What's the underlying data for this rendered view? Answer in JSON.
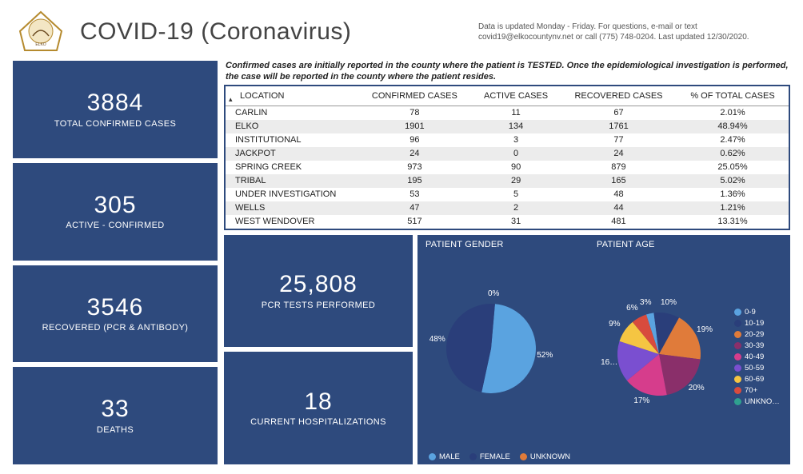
{
  "header": {
    "title": "COVID-19 (Coronavirus)",
    "update_note": "Data is updated Monday - Friday.  For questions, e-mail or text covid19@elkocountynv.net or call (775) 748-0204.  Last updated 12/30/2020."
  },
  "disclaimer": "Confirmed cases are initially reported in the county where the patient is TESTED.  Once the epidemiological investigation is performed, the case will be reported in the county where the patient resides.",
  "left_stats": [
    {
      "value": "3884",
      "label": "TOTAL CONFIRMED CASES"
    },
    {
      "value": "305",
      "label": "ACTIVE - CONFIRMED"
    },
    {
      "value": "3546",
      "label": "RECOVERED (PCR & ANTIBODY)"
    },
    {
      "value": "33",
      "label": "DEATHS"
    }
  ],
  "mid_stats": [
    {
      "value": "25,808",
      "label": "PCR TESTS PERFORMED"
    },
    {
      "value": "18",
      "label": "CURRENT HOSPITALIZATIONS"
    }
  ],
  "table": {
    "columns": [
      "LOCATION",
      "CONFIRMED CASES",
      "ACTIVE CASES",
      "RECOVERED CASES",
      "% OF TOTAL CASES"
    ],
    "rows": [
      [
        "CARLIN",
        "78",
        "11",
        "67",
        "2.01%"
      ],
      [
        "ELKO",
        "1901",
        "134",
        "1761",
        "48.94%"
      ],
      [
        "INSTITUTIONAL",
        "96",
        "3",
        "77",
        "2.47%"
      ],
      [
        "JACKPOT",
        "24",
        "0",
        "24",
        "0.62%"
      ],
      [
        "SPRING CREEK",
        "973",
        "90",
        "879",
        "25.05%"
      ],
      [
        "TRIBAL",
        "195",
        "29",
        "165",
        "5.02%"
      ],
      [
        "UNDER INVESTIGATION",
        "53",
        "5",
        "48",
        "1.36%"
      ],
      [
        "WELLS",
        "47",
        "2",
        "44",
        "1.21%"
      ],
      [
        "WEST WENDOVER",
        "517",
        "31",
        "481",
        "13.31%"
      ]
    ]
  },
  "gender_chart": {
    "title": "PATIENT GENDER",
    "type": "pie",
    "radius": 56,
    "slices": [
      {
        "label": "MALE",
        "pct": 52,
        "color": "#5aa3e0",
        "text": "52%"
      },
      {
        "label": "FEMALE",
        "pct": 48,
        "color": "#2a3e7a",
        "text": "48%"
      },
      {
        "label": "UNKNOWN",
        "pct": 0,
        "color": "#e07b3a",
        "text": "0%"
      }
    ],
    "legend": [
      {
        "label": "MALE",
        "color": "#5aa3e0"
      },
      {
        "label": "FEMALE",
        "color": "#2a3e7a"
      },
      {
        "label": "UNKNOWN",
        "color": "#e07b3a"
      }
    ]
  },
  "age_chart": {
    "title": "PATIENT AGE",
    "type": "pie",
    "radius": 52,
    "slices": [
      {
        "label": "0-9",
        "pct": 3,
        "color": "#5aa3e0",
        "text": "3%"
      },
      {
        "label": "10-19",
        "pct": 10,
        "color": "#2a3e7a",
        "text": "10%"
      },
      {
        "label": "20-29",
        "pct": 19,
        "color": "#e07b3a",
        "text": "19%"
      },
      {
        "label": "30-39",
        "pct": 20,
        "color": "#8a2f6a",
        "text": "20%"
      },
      {
        "label": "40-49",
        "pct": 17,
        "color": "#d63d8c",
        "text": "17%"
      },
      {
        "label": "50-59",
        "pct": 16,
        "color": "#7a4fd0",
        "text": "16…"
      },
      {
        "label": "60-69",
        "pct": 9,
        "color": "#f5c542",
        "text": "9%"
      },
      {
        "label": "70+",
        "pct": 6,
        "color": "#d84b3d",
        "text": "6%"
      },
      {
        "label": "UNKNO…",
        "pct": 0,
        "color": "#2fa08f",
        "text": ""
      }
    ],
    "legend": [
      {
        "label": "0-9",
        "color": "#5aa3e0"
      },
      {
        "label": "10-19",
        "color": "#2a3e7a"
      },
      {
        "label": "20-29",
        "color": "#e07b3a"
      },
      {
        "label": "30-39",
        "color": "#8a2f6a"
      },
      {
        "label": "40-49",
        "color": "#d63d8c"
      },
      {
        "label": "50-59",
        "color": "#7a4fd0"
      },
      {
        "label": "60-69",
        "color": "#f5c542"
      },
      {
        "label": "70+",
        "color": "#d84b3d"
      },
      {
        "label": "UNKNO…",
        "color": "#2fa08f"
      }
    ]
  },
  "colors": {
    "card_bg": "#2e4a7d",
    "row_alt": "#ececec",
    "text": "#222222"
  }
}
